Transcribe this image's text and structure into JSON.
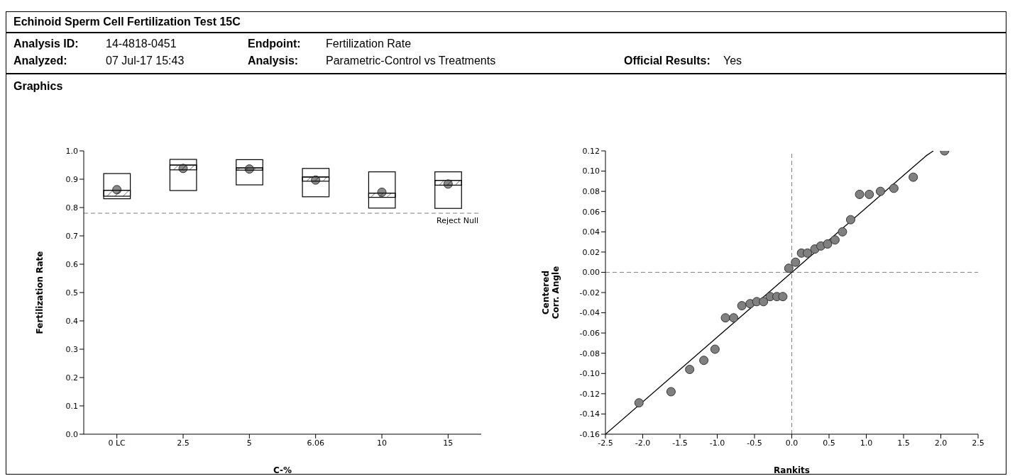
{
  "chart_data": [
    {
      "type": "box",
      "title": "Echinoid Sperm Cell Fertilization Test 15C",
      "annotations": [
        "Analysis ID:",
        "14-4818-0451",
        "Endpoint:",
        "Fertilization Rate",
        "Analyzed:",
        "07 Jul-17 15:43",
        "Analysis:",
        "Parametric-Control vs Treatments",
        "Official Results:",
        "Yes",
        "Graphics"
      ],
      "categories": [
        "0 LC",
        "2.5",
        "5",
        "6.06",
        "10",
        "15"
      ],
      "series": [
        {
          "color": "#000000",
          "boxes": [
            {
              "low": 0.831,
              "q1": 0.831,
              "median": 0.861,
              "q3": 0.92,
              "high": 0.92,
              "mean": 0.863
            },
            {
              "low": 0.86,
              "q1": 0.86,
              "median": 0.95,
              "q3": 0.97,
              "high": 0.97,
              "mean": 0.938
            },
            {
              "low": 0.88,
              "q1": 0.88,
              "median": 0.94,
              "q3": 0.969,
              "high": 0.969,
              "mean": 0.936
            },
            {
              "low": 0.838,
              "q1": 0.838,
              "median": 0.908,
              "q3": 0.938,
              "high": 0.938,
              "mean": 0.897
            },
            {
              "low": 0.798,
              "q1": 0.798,
              "median": 0.851,
              "q3": 0.926,
              "high": 0.926,
              "mean": 0.854
            },
            {
              "low": 0.797,
              "q1": 0.797,
              "median": 0.896,
              "q3": 0.926,
              "high": 0.926,
              "mean": 0.883
            }
          ]
        },
        {
          "type": "bar",
          "color": "#000000",
          "base": [
            0.84,
            0.933,
            0.932,
            0.893,
            0.836,
            0.879
          ],
          "values": [
            0.021,
            0.017,
            0.008,
            0.015,
            0.015,
            0.017
          ]
        }
      ],
      "xlabel": "C-%",
      "ylabel": "Fertilization Rate",
      "ylim": [
        0,
        1
      ],
      "yticks": [
        {
          "value": 0,
          "label": "0.0"
        },
        0.1,
        0.2,
        0.3,
        0.4,
        0.5,
        0.6,
        0.7,
        0.8,
        0.9,
        {
          "value": 1,
          "label": "1.0"
        }
      ],
      "ref_lines": [
        {
          "axis": "y",
          "value": 0.78,
          "label": "Reject Null",
          "line_style": "dashed",
          "color": "#808080"
        }
      ],
      "grid": false,
      "legend": false
    },
    {
      "type": "scatter",
      "xlabel": "Rankits",
      "ylabel": "Centered\nCorr. Angle",
      "series": [
        {
          "type": "scatter",
          "color": "#808080",
          "marker": "circle",
          "x": [
            -2.05,
            -1.62,
            -1.37,
            -1.18,
            -1.03,
            -0.89,
            -0.78,
            -0.67,
            -0.56,
            -0.47,
            -0.38,
            -0.29,
            -0.2,
            -0.12,
            -0.04,
            0.05,
            0.13,
            0.21,
            0.31,
            0.39,
            0.48,
            0.58,
            0.68,
            0.79,
            0.91,
            1.04,
            1.19,
            1.37,
            1.63,
            2.05
          ],
          "values": [
            -0.129,
            -0.118,
            -0.096,
            -0.087,
            -0.076,
            -0.045,
            -0.045,
            -0.033,
            -0.031,
            -0.029,
            -0.029,
            -0.024,
            -0.024,
            -0.024,
            0.004,
            0.01,
            0.019,
            0.019,
            0.023,
            0.026,
            0.028,
            0.032,
            0.04,
            0.052,
            0.077,
            0.077,
            0.08,
            0.083,
            0.094,
            0.12
          ]
        },
        {
          "type": "line",
          "color": "#000000",
          "line_style": "solid",
          "marker": "none",
          "x": [
            -2.5,
            1.8,
            1.9
          ],
          "values": [
            -0.16,
            0.115,
            0.12
          ]
        }
      ],
      "xlim": [
        -2.5,
        2.5
      ],
      "xticks": [
        {
          "value": -2.5,
          "label": "-2.5"
        },
        {
          "value": -2,
          "label": "-2.0"
        },
        -1.5,
        {
          "value": -1,
          "label": "-1.0"
        },
        -0.5,
        {
          "value": 0,
          "label": "0.0"
        },
        0.5,
        {
          "value": 1,
          "label": "1.0"
        },
        1.5,
        {
          "value": 2,
          "label": "2.0"
        },
        2.5
      ],
      "ylim": [
        -0.16,
        0.12
      ],
      "yticks": [
        {
          "value": -0.16,
          "label": "-0.16"
        },
        {
          "value": -0.14,
          "label": "-0.14"
        },
        {
          "value": -0.12,
          "label": "-0.12"
        },
        {
          "value": -0.1,
          "label": "-0.10"
        },
        {
          "value": -0.08,
          "label": "-0.08"
        },
        {
          "value": -0.06,
          "label": "-0.06"
        },
        {
          "value": -0.04,
          "label": "-0.04"
        },
        {
          "value": -0.02,
          "label": "-0.02"
        },
        {
          "value": 0,
          "label": "0.00"
        },
        {
          "value": 0.02,
          "label": "0.02"
        },
        {
          "value": 0.04,
          "label": "0.04"
        },
        {
          "value": 0.06,
          "label": "0.06"
        },
        {
          "value": 0.08,
          "label": "0.08"
        },
        {
          "value": 0.1,
          "label": "0.10"
        },
        {
          "value": 0.12,
          "label": "0.12"
        }
      ],
      "ref_lines": [
        {
          "axis": "x",
          "value": 0,
          "line_style": "dashed",
          "color": "#808080"
        },
        {
          "axis": "y",
          "value": 0,
          "line_style": "dashed",
          "color": "#808080"
        }
      ],
      "grid": false,
      "legend": false
    }
  ]
}
